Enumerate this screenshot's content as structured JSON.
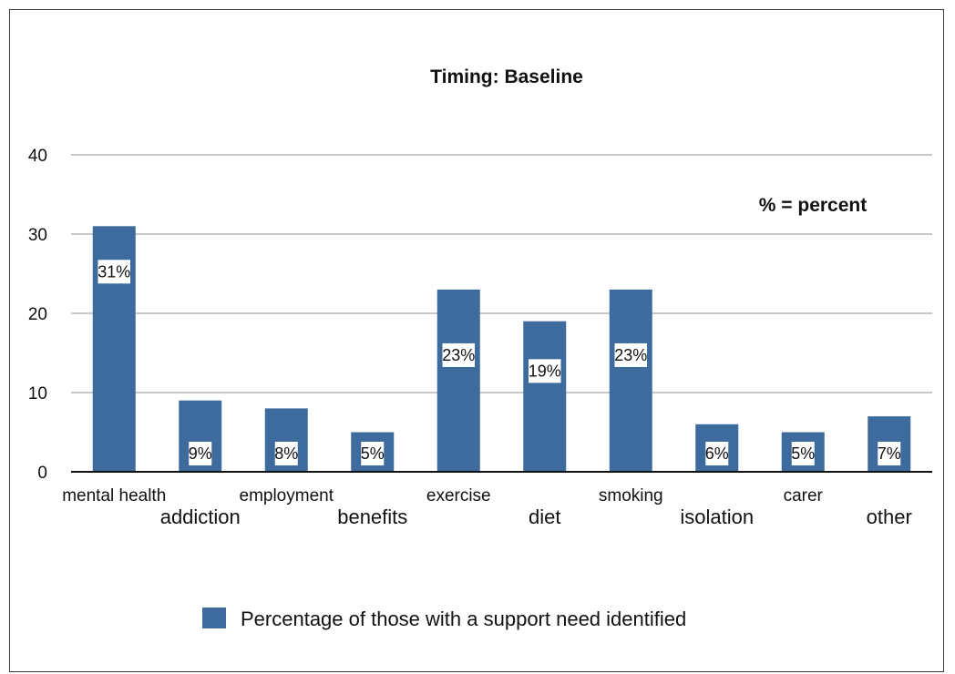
{
  "chart_data": {
    "type": "bar",
    "title": "Timing: Baseline",
    "annotation": "% = percent",
    "categories": [
      "mental health",
      "addiction",
      "employment",
      "benefits",
      "exercise",
      "diet",
      "smoking",
      "isolation",
      "carer",
      "other"
    ],
    "series": [
      {
        "name": "Percentage of those with a support need identified",
        "values": [
          31,
          9,
          8,
          5,
          23,
          19,
          23,
          6,
          5,
          7
        ],
        "labels": [
          "31%",
          "9%",
          "8%",
          "5%",
          "23%",
          "19%",
          "23%",
          "6%",
          "5%",
          "7%"
        ],
        "color": "#3e6b9d"
      }
    ],
    "yticks": [
      0,
      10,
      20,
      30,
      40
    ],
    "ylim": [
      0,
      40
    ],
    "xlabel": "",
    "ylabel": "",
    "grid": true,
    "legend_position": "bottom"
  }
}
